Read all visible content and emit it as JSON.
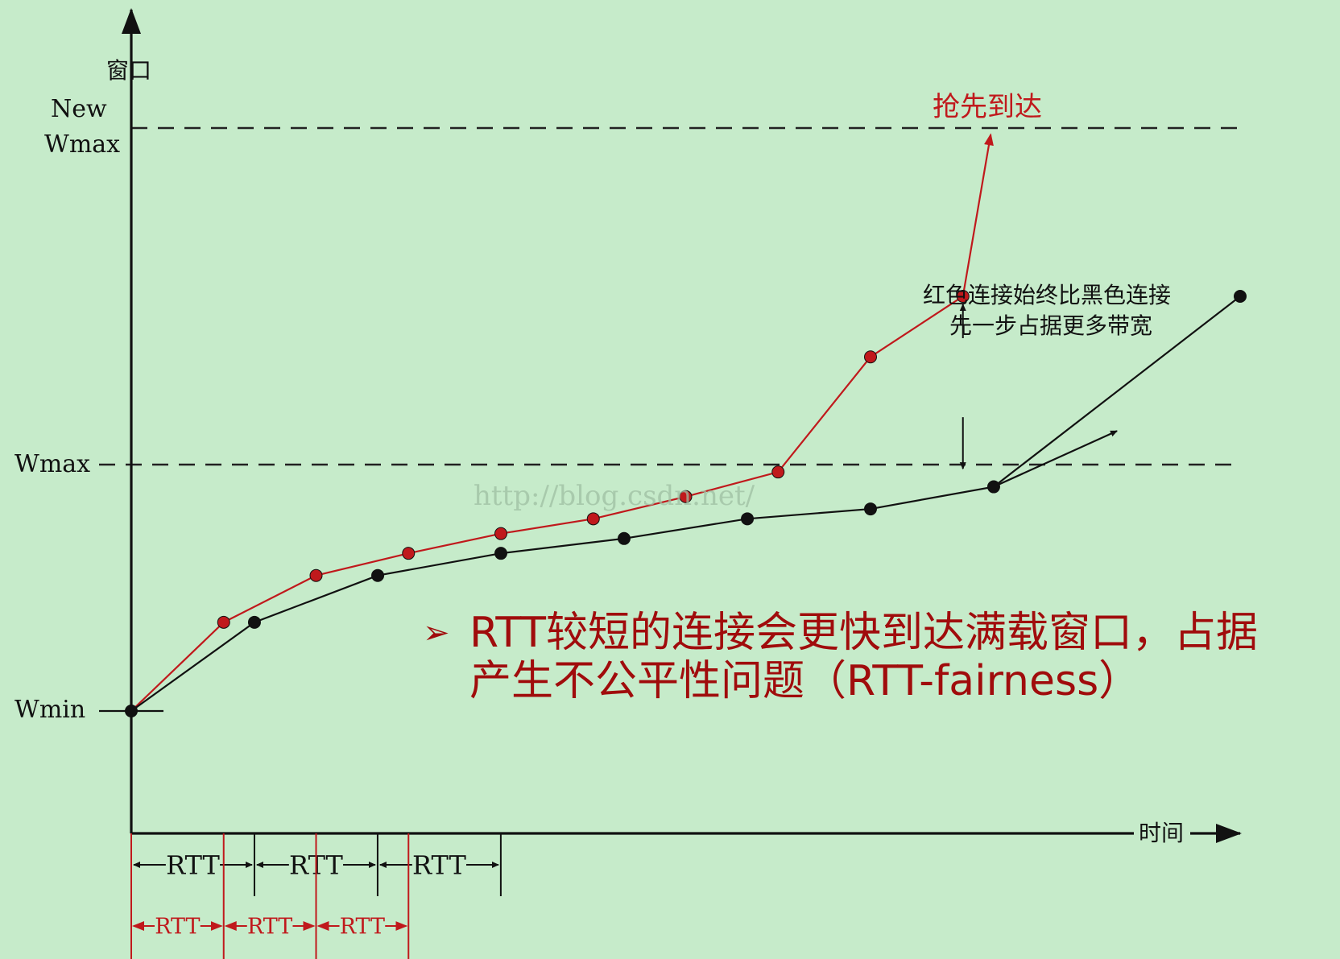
{
  "chart_data": {
    "type": "line",
    "title": "",
    "ylabel": "窗口",
    "xlabel": "时间",
    "y_levels": [
      {
        "name": "Wmin",
        "label": "Wmin",
        "value": 0
      },
      {
        "name": "Wmax",
        "label": "Wmax",
        "value": 1
      },
      {
        "name": "NewWmax",
        "label_line1": "New",
        "label_line2": "Wmax",
        "value": 2
      }
    ],
    "xlim": [
      0,
      12
    ],
    "ylim": [
      -0.5,
      2.25
    ],
    "series": [
      {
        "color": "#c0191c",
        "rtt": 1,
        "points": [
          {
            "x": 0,
            "y": 0
          },
          {
            "x": 1,
            "y": 0.36
          },
          {
            "x": 2,
            "y": 0.55
          },
          {
            "x": 3,
            "y": 0.64
          },
          {
            "x": 4,
            "y": 0.72
          },
          {
            "x": 5,
            "y": 0.78
          },
          {
            "x": 6,
            "y": 0.87
          },
          {
            "x": 7,
            "y": 0.97
          },
          {
            "x": 8,
            "y": 1.32
          },
          {
            "x": 9,
            "y": 1.5
          }
        ],
        "end_arrow": {
          "x": 9.3,
          "y": 1.98
        }
      },
      {
        "color": "#111111",
        "rtt": 1.333,
        "points": [
          {
            "x": 0,
            "y": 0
          },
          {
            "x": 1.333,
            "y": 0.36
          },
          {
            "x": 2.667,
            "y": 0.55
          },
          {
            "x": 4,
            "y": 0.64
          },
          {
            "x": 5.333,
            "y": 0.7
          },
          {
            "x": 6.667,
            "y": 0.78
          },
          {
            "x": 8,
            "y": 0.82
          },
          {
            "x": 9.333,
            "y": 0.91
          },
          {
            "x": 12,
            "y": 1.5
          }
        ],
        "end_arrow": {
          "x": 10.667,
          "y": 1.1
        }
      }
    ],
    "annotations": {
      "first_arrival": "抢先到达",
      "gap_text_line1": "红色连接始终比黑色连接",
      "gap_text_line2": "先一步占据更多带宽",
      "gap_arrow_x": 9,
      "gap_arrow_from": 0.97,
      "gap_arrow_to": 1.5
    },
    "rtt_label": "RTT",
    "black_rtt_count": 3,
    "red_rtt_count": 3
  },
  "watermark": "http://blog.csdn.net/",
  "bullet": {
    "marker": "➢",
    "line1": "RTT较短的连接会更快到达满载窗口，占据",
    "line2": "产生不公平性问题（RTT-fairness）"
  },
  "colors": {
    "background": "#c6ebca",
    "red": "#c0191c",
    "black": "#111111",
    "bullet_text": "#a00c0c",
    "watermark": "#9fbfa3"
  }
}
